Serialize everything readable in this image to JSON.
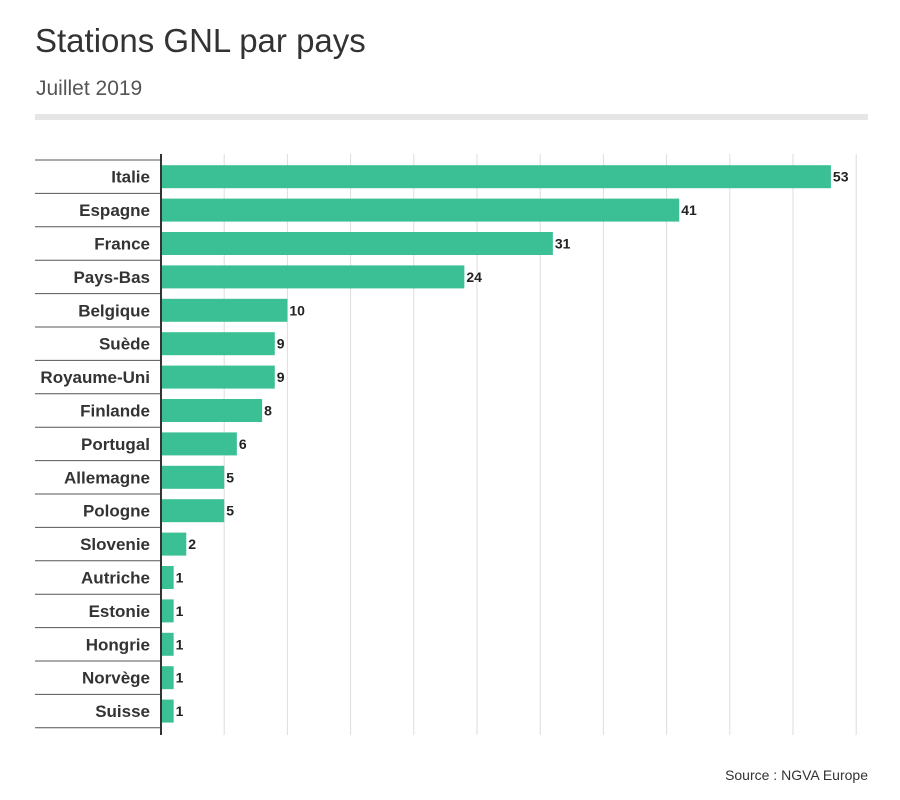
{
  "header": {
    "title": "Stations GNL par pays",
    "subtitle": "Juillet 2019"
  },
  "footer": {
    "source": "Source : NGVA Europe"
  },
  "colors": {
    "bar": "#3bbf94",
    "grid": "#dddddd",
    "axis": "#333333",
    "row_separator": "#555555"
  },
  "chart_data": {
    "type": "bar",
    "orientation": "horizontal",
    "categories": [
      "Italie",
      "Espagne",
      "France",
      "Pays-Bas",
      "Belgique",
      "Suède",
      "Royaume-Uni",
      "Finlande",
      "Portugal",
      "Allemagne",
      "Pologne",
      "Slovenie",
      "Autriche",
      "Estonie",
      "Hongrie",
      "Norvège",
      "Suisse"
    ],
    "values": [
      53,
      41,
      31,
      24,
      10,
      9,
      9,
      8,
      6,
      5,
      5,
      2,
      1,
      1,
      1,
      1,
      1
    ],
    "xlim": [
      0,
      55
    ],
    "grid": true,
    "data_labels": true
  }
}
